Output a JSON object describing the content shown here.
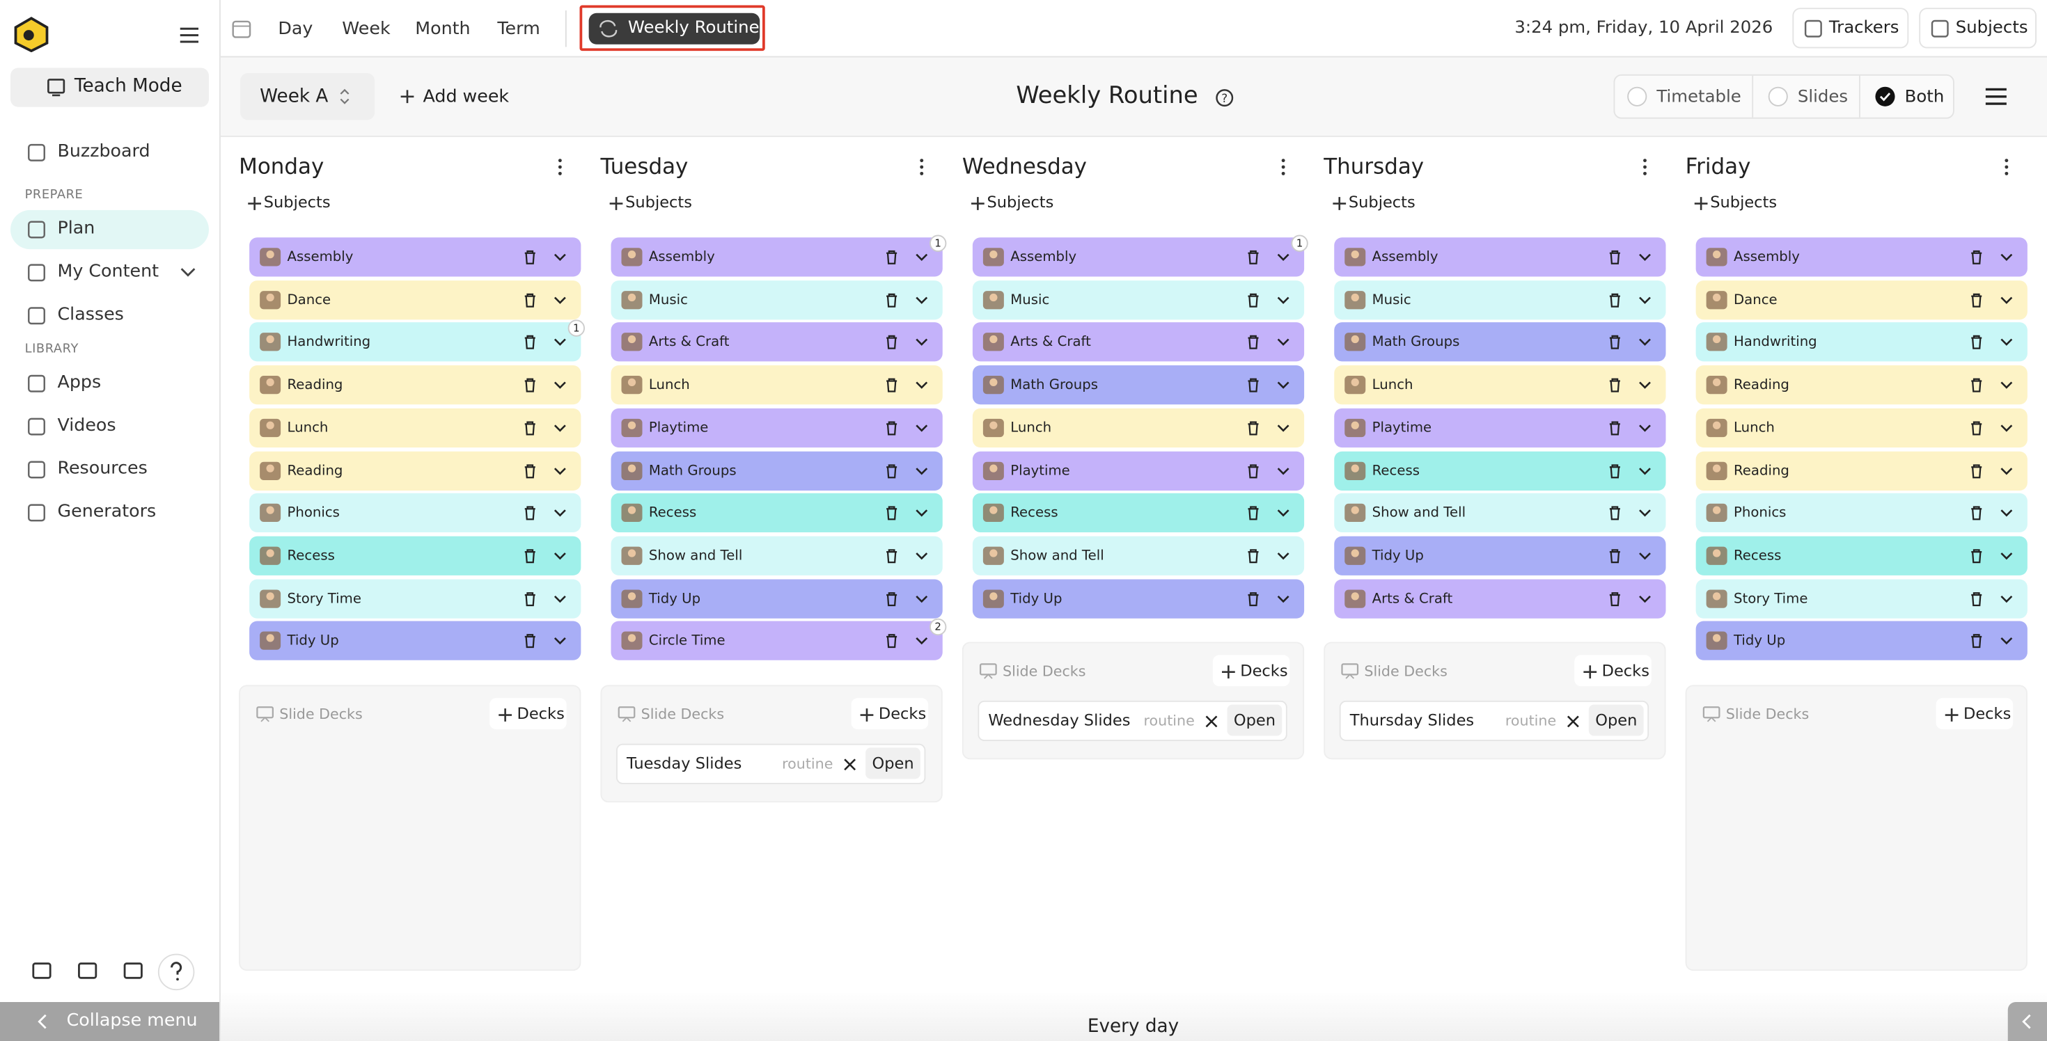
{
  "sidebar": {
    "teach_mode": "Teach Mode",
    "top_items": [
      "Buzzboard"
    ],
    "sections": [
      {
        "heading": "PREPARE",
        "items": [
          "Plan",
          "My Content",
          "Classes"
        ]
      },
      {
        "heading": "LIBRARY",
        "items": [
          "Apps",
          "Videos",
          "Resources",
          "Generators"
        ]
      }
    ],
    "active": "Plan",
    "collapse": "Collapse menu"
  },
  "toolbar": {
    "views": [
      "Day",
      "Week",
      "Month",
      "Term"
    ],
    "active_view": "Weekly Routine",
    "datetime": "3:24 pm, Friday, 10 April 2026",
    "buttons": [
      "Trackers",
      "Subjects"
    ]
  },
  "header": {
    "week": "Week A",
    "add_week": "Add week",
    "title": "Weekly Routine",
    "display_options": [
      {
        "label": "Timetable",
        "checked": false
      },
      {
        "label": "Slides",
        "checked": false
      },
      {
        "label": "Both",
        "checked": true
      }
    ]
  },
  "days": [
    {
      "name": "Monday",
      "add_subjects": "Subjects",
      "subjects": [
        {
          "name": "Assembly",
          "color": "#c4b2fa"
        },
        {
          "name": "Dance",
          "color": "#fdf3c6"
        },
        {
          "name": "Handwriting",
          "color": "#c9f7f7",
          "badge": 1
        },
        {
          "name": "Reading",
          "color": "#fdf3c6"
        },
        {
          "name": "Lunch",
          "color": "#fdf3c6"
        },
        {
          "name": "Reading",
          "color": "#fdf3c6"
        },
        {
          "name": "Phonics",
          "color": "#d3f8f8"
        },
        {
          "name": "Recess",
          "color": "#9ff0ea"
        },
        {
          "name": "Story Time",
          "color": "#d3f8f8"
        },
        {
          "name": "Tidy Up",
          "color": "#a8aef6"
        }
      ],
      "slide_decks": {
        "label": "Slide Decks",
        "add": "Decks",
        "decks": []
      }
    },
    {
      "name": "Tuesday",
      "add_subjects": "Subjects",
      "subjects": [
        {
          "name": "Assembly",
          "color": "#c4b2fa",
          "badge": 1
        },
        {
          "name": "Music",
          "color": "#d3f8f8"
        },
        {
          "name": "Arts & Craft",
          "color": "#c4b2fa"
        },
        {
          "name": "Lunch",
          "color": "#fdf3c6"
        },
        {
          "name": "Playtime",
          "color": "#c4b2fa"
        },
        {
          "name": "Math Groups",
          "color": "#a8aef6"
        },
        {
          "name": "Recess",
          "color": "#9ff0ea"
        },
        {
          "name": "Show and Tell",
          "color": "#d3f8f8"
        },
        {
          "name": "Tidy Up",
          "color": "#a8aef6"
        },
        {
          "name": "Circle Time",
          "color": "#c4b2fa",
          "badge": 2
        }
      ],
      "slide_decks": {
        "label": "Slide Decks",
        "add": "Decks",
        "decks": [
          {
            "name": "Tuesday Slides",
            "tag": "routine",
            "action": "Open"
          }
        ]
      }
    },
    {
      "name": "Wednesday",
      "add_subjects": "Subjects",
      "subjects": [
        {
          "name": "Assembly",
          "color": "#c4b2fa",
          "badge": 1
        },
        {
          "name": "Music",
          "color": "#d3f8f8"
        },
        {
          "name": "Arts & Craft",
          "color": "#c4b2fa"
        },
        {
          "name": "Math Groups",
          "color": "#a8aef6"
        },
        {
          "name": "Lunch",
          "color": "#fdf3c6"
        },
        {
          "name": "Playtime",
          "color": "#c4b2fa"
        },
        {
          "name": "Recess",
          "color": "#9ff0ea"
        },
        {
          "name": "Show and Tell",
          "color": "#d3f8f8"
        },
        {
          "name": "Tidy Up",
          "color": "#a8aef6"
        }
      ],
      "slide_decks": {
        "label": "Slide Decks",
        "add": "Decks",
        "decks": [
          {
            "name": "Wednesday Slides",
            "tag": "routine",
            "action": "Open"
          }
        ]
      }
    },
    {
      "name": "Thursday",
      "add_subjects": "Subjects",
      "subjects": [
        {
          "name": "Assembly",
          "color": "#c4b2fa"
        },
        {
          "name": "Music",
          "color": "#d3f8f8"
        },
        {
          "name": "Math Groups",
          "color": "#a8aef6"
        },
        {
          "name": "Lunch",
          "color": "#fdf3c6"
        },
        {
          "name": "Playtime",
          "color": "#c4b2fa"
        },
        {
          "name": "Recess",
          "color": "#9ff0ea"
        },
        {
          "name": "Show and Tell",
          "color": "#d3f8f8"
        },
        {
          "name": "Tidy Up",
          "color": "#a8aef6"
        },
        {
          "name": "Arts & Craft",
          "color": "#c4b2fa"
        }
      ],
      "slide_decks": {
        "label": "Slide Decks",
        "add": "Decks",
        "decks": [
          {
            "name": "Thursday Slides",
            "tag": "routine",
            "action": "Open"
          }
        ]
      }
    },
    {
      "name": "Friday",
      "add_subjects": "Subjects",
      "subjects": [
        {
          "name": "Assembly",
          "color": "#c4b2fa"
        },
        {
          "name": "Dance",
          "color": "#fdf3c6"
        },
        {
          "name": "Handwriting",
          "color": "#c9f7f7"
        },
        {
          "name": "Reading",
          "color": "#fdf3c6"
        },
        {
          "name": "Lunch",
          "color": "#fdf3c6"
        },
        {
          "name": "Reading",
          "color": "#fdf3c6"
        },
        {
          "name": "Phonics",
          "color": "#d3f8f8"
        },
        {
          "name": "Recess",
          "color": "#9ff0ea"
        },
        {
          "name": "Story Time",
          "color": "#d3f8f8"
        },
        {
          "name": "Tidy Up",
          "color": "#a8aef6"
        }
      ],
      "slide_decks": {
        "label": "Slide Decks",
        "add": "Decks",
        "decks": []
      }
    }
  ],
  "footer": "Every day"
}
